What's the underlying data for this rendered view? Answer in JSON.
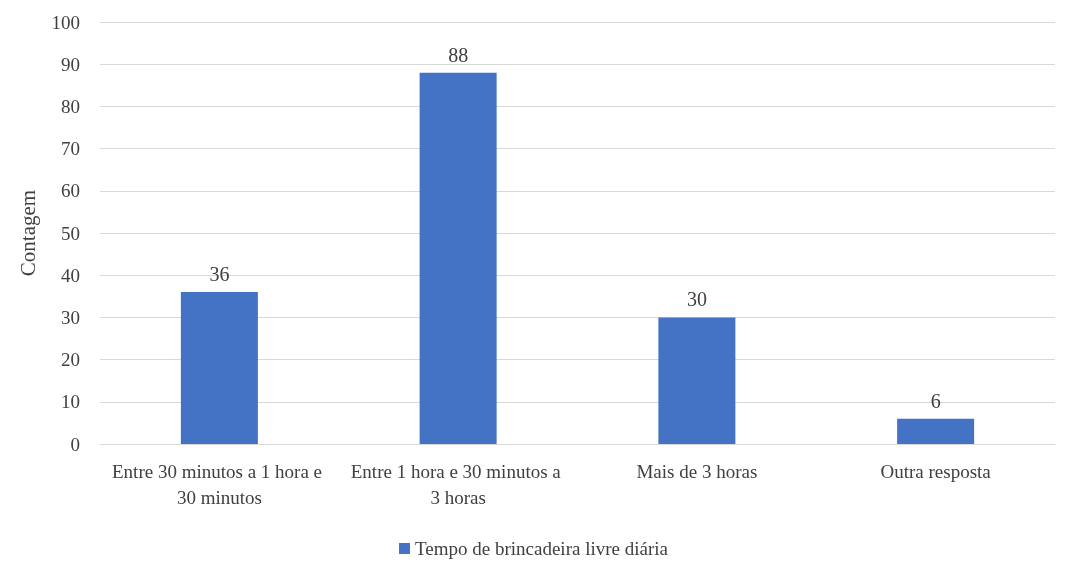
{
  "chart_data": {
    "type": "bar",
    "ylabel": "Contagem",
    "categories": [
      "Entre 30 minutos a 1 hora e 30 minutos",
      "Entre 1 hora e 30 minutos a 3 horas",
      "Mais de 3 horas",
      "Outra resposta"
    ],
    "series": [
      {
        "name": "Tempo de brincadeira livre diária",
        "color": "#4472c4",
        "values": [
          36,
          88,
          30,
          6
        ]
      }
    ],
    "ylim": [
      0,
      100
    ],
    "yticks": [
      0,
      10,
      20,
      30,
      40,
      50,
      60,
      70,
      80,
      90,
      100
    ],
    "grid": "y",
    "legend": "bottom",
    "data_labels": true
  }
}
